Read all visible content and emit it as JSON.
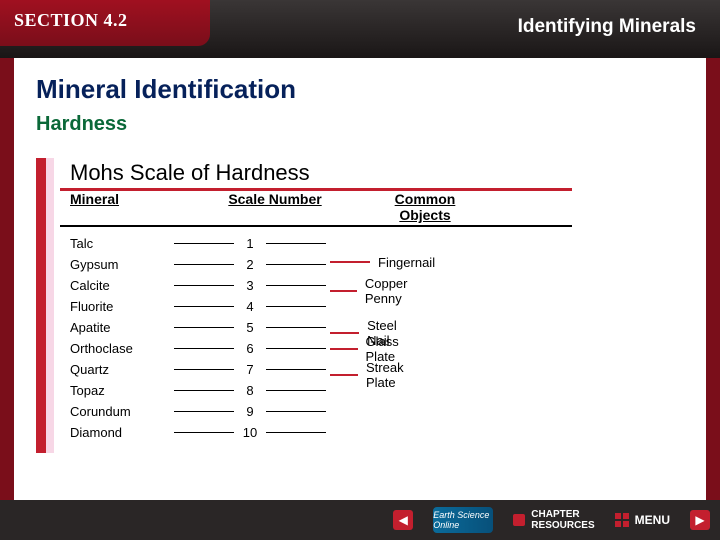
{
  "section_label": "SECTION 4.2",
  "topic_title": "Identifying Minerals",
  "content": {
    "title": "Mineral Identification",
    "subtitle": "Hardness"
  },
  "mohs": {
    "title": "Mohs Scale of Hardness",
    "headers": {
      "mineral": "Mineral",
      "scale": "Scale Number",
      "objects": "Common Objects"
    },
    "rows": [
      {
        "mineral": "Talc",
        "scale": "1"
      },
      {
        "mineral": "Gypsum",
        "scale": "2"
      },
      {
        "mineral": "Calcite",
        "scale": "3"
      },
      {
        "mineral": "Fluorite",
        "scale": "4"
      },
      {
        "mineral": "Apatite",
        "scale": "5"
      },
      {
        "mineral": "Orthoclase",
        "scale": "6"
      },
      {
        "mineral": "Quartz",
        "scale": "7"
      },
      {
        "mineral": "Topaz",
        "scale": "8"
      },
      {
        "mineral": "Corundum",
        "scale": "9"
      },
      {
        "mineral": "Diamond",
        "scale": "10"
      }
    ],
    "objects": [
      {
        "label": "Fingernail",
        "pos_row": 1.5
      },
      {
        "label": "Copper Penny",
        "pos_row": 2.5
      },
      {
        "label": "Steel Nail",
        "pos_row": 4.5
      },
      {
        "label": "Glass Plate",
        "pos_row": 5.3
      },
      {
        "label": "Streak Plate",
        "pos_row": 6.5
      }
    ],
    "colors": {
      "accent": "#c31f2e",
      "accent_light": "#f7d7e6"
    }
  },
  "footer": {
    "earth_label": "Earth Science Online",
    "chapter_label": "CHAPTER RESOURCES",
    "menu_label": "MENU"
  }
}
